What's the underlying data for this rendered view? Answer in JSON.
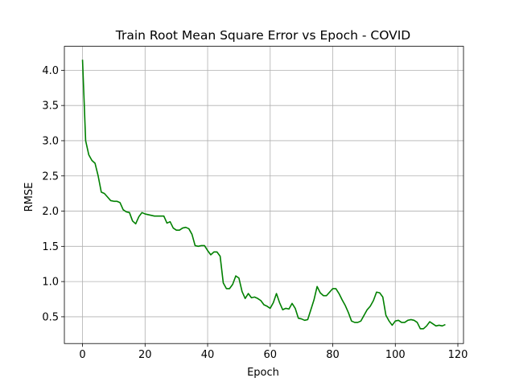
{
  "chart_data": {
    "type": "line",
    "title": "Train Root Mean Square Error vs Epoch - COVID",
    "xlabel": "Epoch",
    "ylabel": "RMSE",
    "xlim": [
      -5.8,
      121.8
    ],
    "ylim": [
      0.12,
      4.34
    ],
    "xticks": [
      0,
      20,
      40,
      60,
      80,
      100,
      120
    ],
    "yticks": [
      0.5,
      1.0,
      1.5,
      2.0,
      2.5,
      3.0,
      3.5,
      4.0
    ],
    "grid": true,
    "legend": "none",
    "series": [
      {
        "color": "#008000",
        "x": [
          0,
          1,
          2,
          3,
          4,
          5,
          6,
          7,
          8,
          9,
          10,
          11,
          12,
          13,
          14,
          15,
          16,
          17,
          18,
          19,
          20,
          21,
          22,
          23,
          24,
          25,
          26,
          27,
          28,
          29,
          30,
          31,
          32,
          33,
          34,
          35,
          36,
          37,
          38,
          39,
          40,
          41,
          42,
          43,
          44,
          45,
          46,
          47,
          48,
          49,
          50,
          51,
          52,
          53,
          54,
          55,
          56,
          57,
          58,
          59,
          60,
          61,
          62,
          63,
          64,
          65,
          66,
          67,
          68,
          69,
          70,
          71,
          72,
          73,
          74,
          75,
          76,
          77,
          78,
          79,
          80,
          81,
          82,
          83,
          84,
          85,
          86,
          87,
          88,
          89,
          90,
          91,
          92,
          93,
          94,
          95,
          96,
          97,
          98,
          99,
          100,
          101,
          102,
          103,
          104,
          105,
          106,
          107,
          108,
          109,
          110,
          111,
          112,
          113,
          114,
          115,
          116
        ],
        "y": [
          4.15,
          3.0,
          2.8,
          2.72,
          2.68,
          2.5,
          2.27,
          2.25,
          2.2,
          2.15,
          2.14,
          2.14,
          2.12,
          2.02,
          1.99,
          1.98,
          1.86,
          1.82,
          1.92,
          1.98,
          1.96,
          1.95,
          1.94,
          1.93,
          1.93,
          1.93,
          1.93,
          1.83,
          1.85,
          1.76,
          1.73,
          1.73,
          1.76,
          1.77,
          1.75,
          1.67,
          1.51,
          1.5,
          1.51,
          1.51,
          1.44,
          1.38,
          1.42,
          1.42,
          1.36,
          0.98,
          0.9,
          0.9,
          0.96,
          1.08,
          1.05,
          0.86,
          0.76,
          0.83,
          0.77,
          0.78,
          0.76,
          0.73,
          0.67,
          0.65,
          0.62,
          0.7,
          0.83,
          0.7,
          0.6,
          0.62,
          0.61,
          0.69,
          0.62,
          0.48,
          0.47,
          0.45,
          0.46,
          0.6,
          0.74,
          0.93,
          0.84,
          0.8,
          0.8,
          0.85,
          0.9,
          0.9,
          0.83,
          0.74,
          0.66,
          0.56,
          0.44,
          0.42,
          0.42,
          0.44,
          0.52,
          0.6,
          0.65,
          0.73,
          0.85,
          0.84,
          0.78,
          0.52,
          0.44,
          0.38,
          0.44,
          0.45,
          0.42,
          0.42,
          0.45,
          0.46,
          0.45,
          0.42,
          0.33,
          0.33,
          0.37,
          0.43,
          0.4,
          0.37,
          0.38,
          0.37,
          0.39
        ]
      }
    ]
  }
}
